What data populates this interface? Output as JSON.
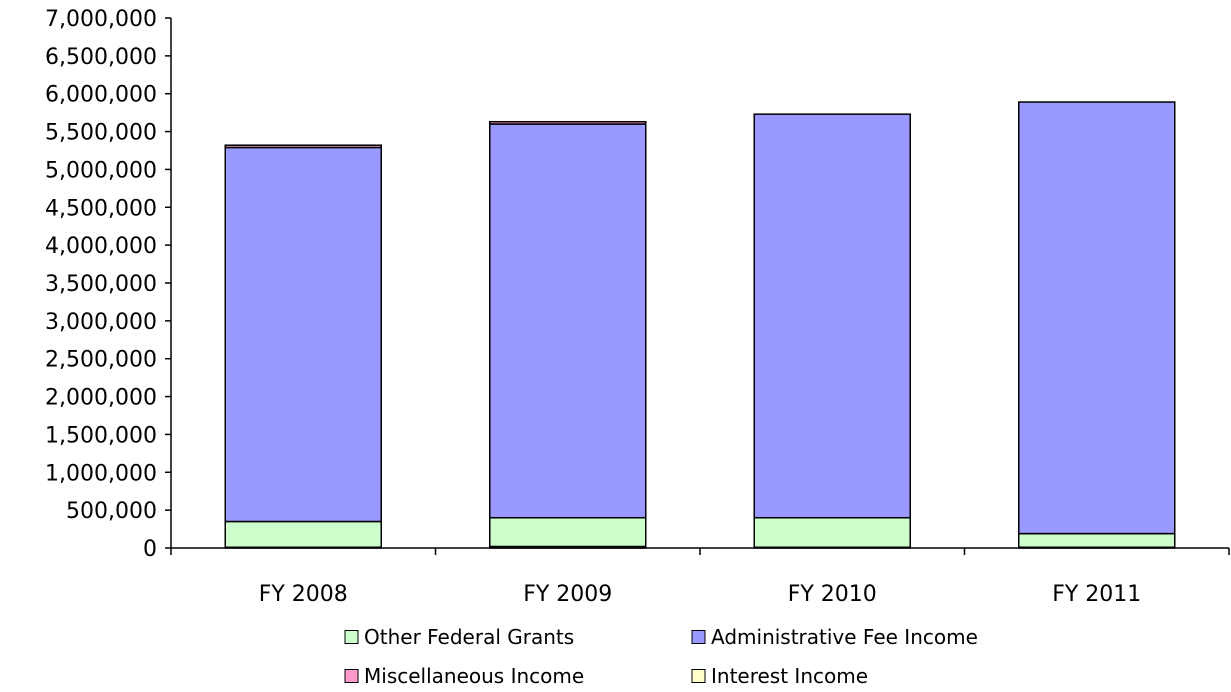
{
  "chart_data": {
    "type": "bar",
    "stacked": true,
    "categories": [
      "FY 2008",
      "FY 2009",
      "FY 2010",
      "FY 2011"
    ],
    "series": [
      {
        "name": "Interest Income",
        "color": "#ffffcc",
        "values": [
          10000,
          20000,
          10000,
          10000
        ]
      },
      {
        "name": "Other Federal Grants",
        "color": "#ccffcc",
        "values": [
          340000,
          380000,
          390000,
          180000
        ]
      },
      {
        "name": "Administrative Fee Income",
        "color": "#9999ff",
        "values": [
          4940000,
          5200000,
          5330000,
          5700000
        ]
      },
      {
        "name": "Miscellaneous Income",
        "color": "#ff99cc",
        "values": [
          30000,
          30000,
          0,
          0
        ]
      }
    ],
    "ylim": [
      0,
      7000000
    ],
    "yticks": [
      "0",
      "500,000",
      "1,000,000",
      "1,500,000",
      "2,000,000",
      "2,500,000",
      "3,000,000",
      "3,500,000",
      "4,000,000",
      "4,500,000",
      "5,000,000",
      "5,500,000",
      "6,000,000",
      "6,500,000",
      "7,000,000"
    ],
    "grid": false,
    "legend_position": "bottom",
    "legend_order": [
      "Other Federal Grants",
      "Administrative Fee Income",
      "Miscellaneous Income",
      "Interest Income"
    ],
    "title": "",
    "xlabel": "",
    "ylabel": ""
  }
}
